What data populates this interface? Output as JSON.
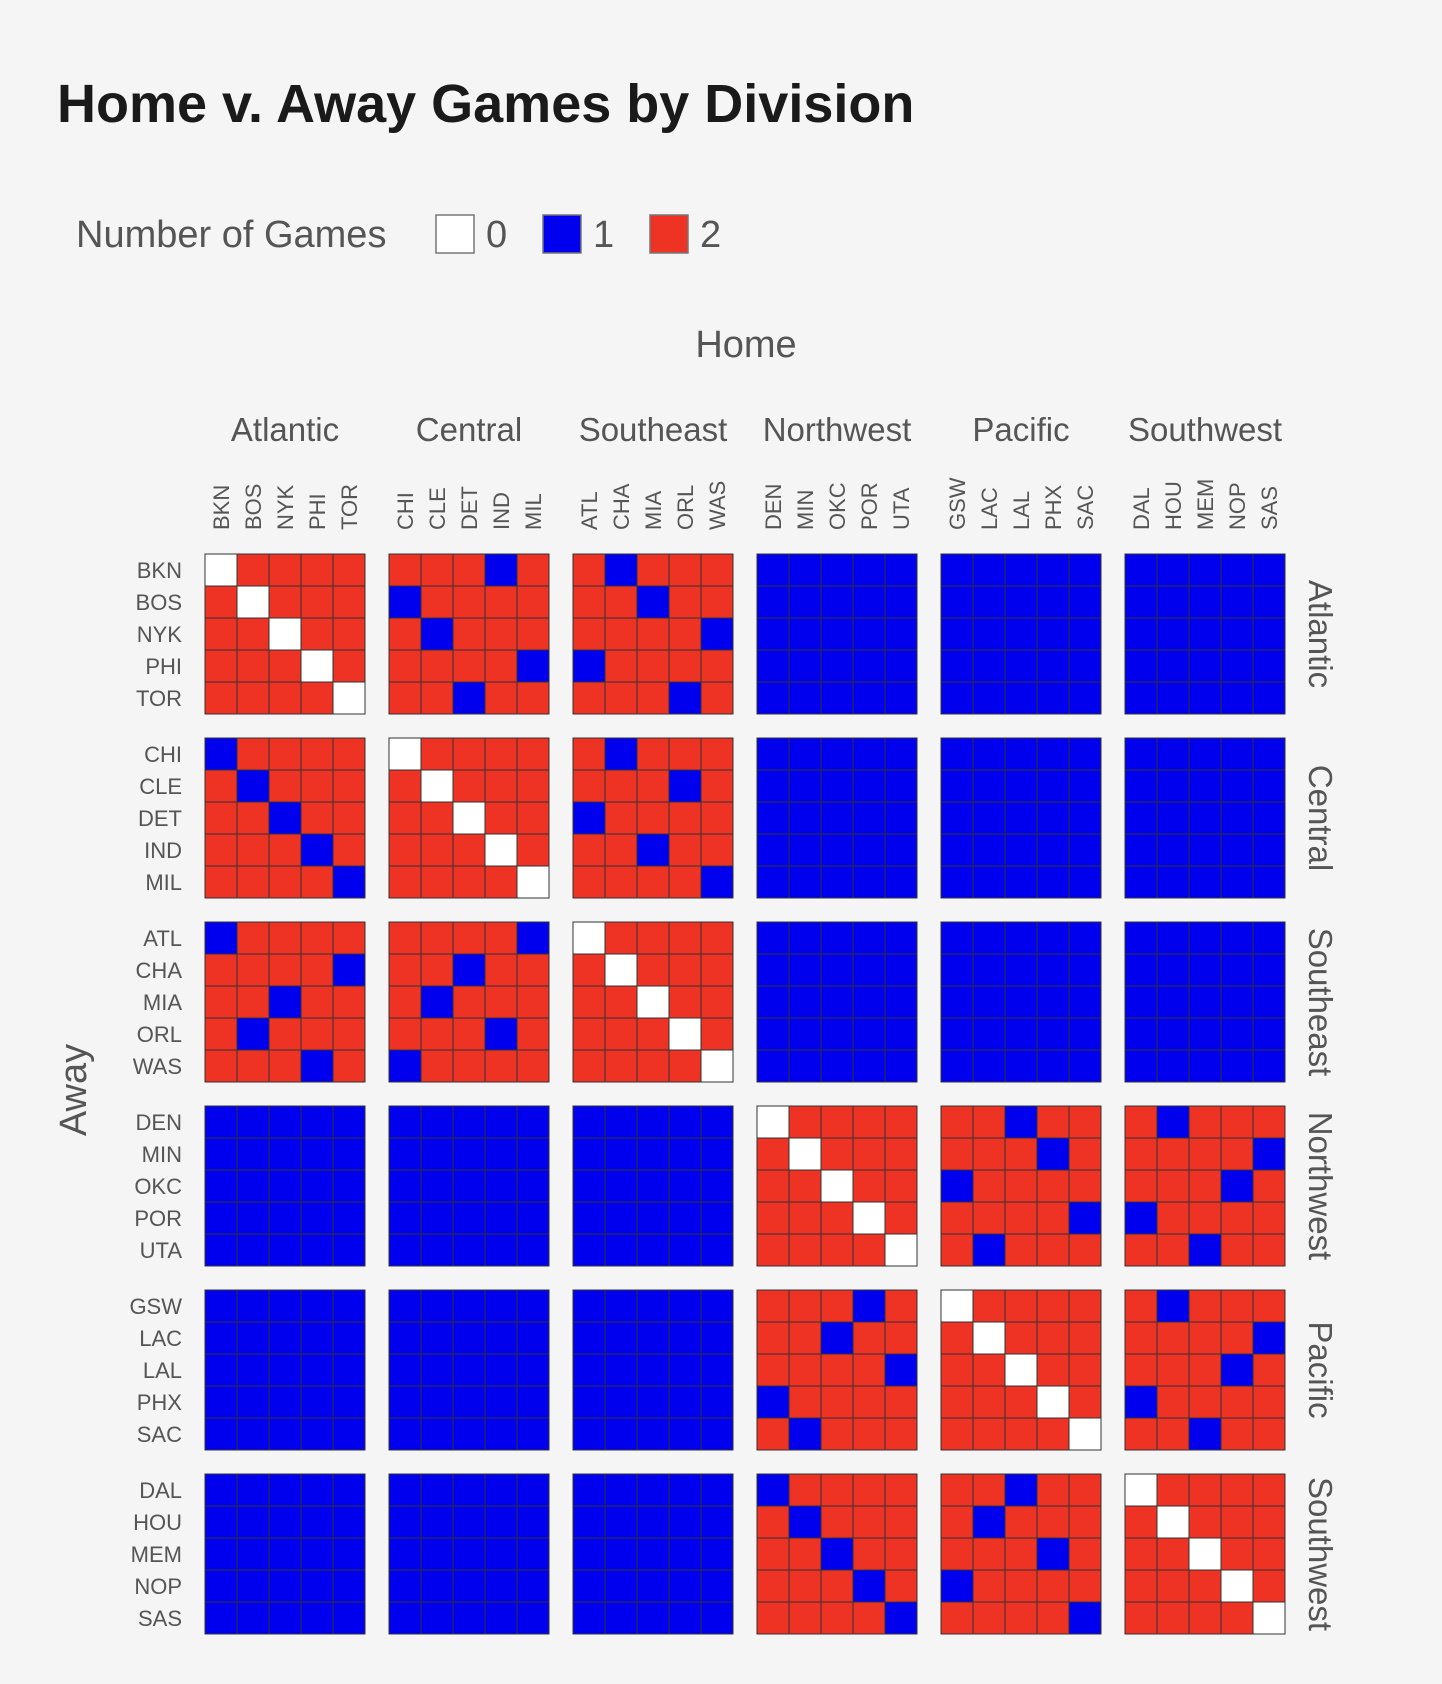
{
  "chart_data": {
    "type": "heatmap",
    "title": "Home v. Away Games by Division",
    "xlabel": "Home",
    "ylabel": "Away",
    "legend": {
      "title": "Number of Games",
      "placement": "top-left",
      "items": [
        {
          "value": 0,
          "label": "0",
          "color": "#ffffff"
        },
        {
          "value": 1,
          "label": "1",
          "color": "#0000ee"
        },
        {
          "value": 2,
          "label": "2",
          "color": "#ee3224"
        }
      ]
    },
    "colors": {
      "0": "#ffffff",
      "1": "#0000ee",
      "2": "#ee3224"
    },
    "divisions": [
      {
        "name": "Atlantic",
        "teams": [
          "BKN",
          "BOS",
          "NYK",
          "PHI",
          "TOR"
        ]
      },
      {
        "name": "Central",
        "teams": [
          "CHI",
          "CLE",
          "DET",
          "IND",
          "MIL"
        ]
      },
      {
        "name": "Southeast",
        "teams": [
          "ATL",
          "CHA",
          "MIA",
          "ORL",
          "WAS"
        ]
      },
      {
        "name": "Northwest",
        "teams": [
          "DEN",
          "MIN",
          "OKC",
          "POR",
          "UTA"
        ]
      },
      {
        "name": "Pacific",
        "teams": [
          "GSW",
          "LAC",
          "LAL",
          "PHX",
          "SAC"
        ]
      },
      {
        "name": "Southwest",
        "teams": [
          "DAL",
          "HOU",
          "MEM",
          "NOP",
          "SAS"
        ]
      }
    ],
    "matrix": [
      [
        0,
        2,
        2,
        2,
        2,
        2,
        2,
        2,
        1,
        2,
        2,
        1,
        2,
        2,
        2,
        1,
        1,
        1,
        1,
        1,
        1,
        1,
        1,
        1,
        1,
        1,
        1,
        1,
        1,
        1
      ],
      [
        2,
        0,
        2,
        2,
        2,
        1,
        2,
        2,
        2,
        2,
        2,
        2,
        1,
        2,
        2,
        1,
        1,
        1,
        1,
        1,
        1,
        1,
        1,
        1,
        1,
        1,
        1,
        1,
        1,
        1
      ],
      [
        2,
        2,
        0,
        2,
        2,
        2,
        1,
        2,
        2,
        2,
        2,
        2,
        2,
        2,
        1,
        1,
        1,
        1,
        1,
        1,
        1,
        1,
        1,
        1,
        1,
        1,
        1,
        1,
        1,
        1
      ],
      [
        2,
        2,
        2,
        0,
        2,
        2,
        2,
        2,
        2,
        1,
        1,
        2,
        2,
        2,
        2,
        1,
        1,
        1,
        1,
        1,
        1,
        1,
        1,
        1,
        1,
        1,
        1,
        1,
        1,
        1
      ],
      [
        2,
        2,
        2,
        2,
        0,
        2,
        2,
        1,
        2,
        2,
        2,
        2,
        2,
        1,
        2,
        1,
        1,
        1,
        1,
        1,
        1,
        1,
        1,
        1,
        1,
        1,
        1,
        1,
        1,
        1
      ],
      [
        1,
        2,
        2,
        2,
        2,
        0,
        2,
        2,
        2,
        2,
        2,
        1,
        2,
        2,
        2,
        1,
        1,
        1,
        1,
        1,
        1,
        1,
        1,
        1,
        1,
        1,
        1,
        1,
        1,
        1
      ],
      [
        2,
        1,
        2,
        2,
        2,
        2,
        0,
        2,
        2,
        2,
        2,
        2,
        2,
        1,
        2,
        1,
        1,
        1,
        1,
        1,
        1,
        1,
        1,
        1,
        1,
        1,
        1,
        1,
        1,
        1
      ],
      [
        2,
        2,
        1,
        2,
        2,
        2,
        2,
        0,
        2,
        2,
        1,
        2,
        2,
        2,
        2,
        1,
        1,
        1,
        1,
        1,
        1,
        1,
        1,
        1,
        1,
        1,
        1,
        1,
        1,
        1
      ],
      [
        2,
        2,
        2,
        1,
        2,
        2,
        2,
        2,
        0,
        2,
        2,
        2,
        1,
        2,
        2,
        1,
        1,
        1,
        1,
        1,
        1,
        1,
        1,
        1,
        1,
        1,
        1,
        1,
        1,
        1
      ],
      [
        2,
        2,
        2,
        2,
        1,
        2,
        2,
        2,
        2,
        0,
        2,
        2,
        2,
        2,
        1,
        1,
        1,
        1,
        1,
        1,
        1,
        1,
        1,
        1,
        1,
        1,
        1,
        1,
        1,
        1
      ],
      [
        1,
        2,
        2,
        2,
        2,
        2,
        2,
        2,
        2,
        1,
        0,
        2,
        2,
        2,
        2,
        1,
        1,
        1,
        1,
        1,
        1,
        1,
        1,
        1,
        1,
        1,
        1,
        1,
        1,
        1
      ],
      [
        2,
        2,
        2,
        2,
        1,
        2,
        2,
        1,
        2,
        2,
        2,
        0,
        2,
        2,
        2,
        1,
        1,
        1,
        1,
        1,
        1,
        1,
        1,
        1,
        1,
        1,
        1,
        1,
        1,
        1
      ],
      [
        2,
        2,
        1,
        2,
        2,
        2,
        1,
        2,
        2,
        2,
        2,
        2,
        0,
        2,
        2,
        1,
        1,
        1,
        1,
        1,
        1,
        1,
        1,
        1,
        1,
        1,
        1,
        1,
        1,
        1
      ],
      [
        2,
        1,
        2,
        2,
        2,
        2,
        2,
        2,
        1,
        2,
        2,
        2,
        2,
        0,
        2,
        1,
        1,
        1,
        1,
        1,
        1,
        1,
        1,
        1,
        1,
        1,
        1,
        1,
        1,
        1
      ],
      [
        2,
        2,
        2,
        1,
        2,
        1,
        2,
        2,
        2,
        2,
        2,
        2,
        2,
        2,
        0,
        1,
        1,
        1,
        1,
        1,
        1,
        1,
        1,
        1,
        1,
        1,
        1,
        1,
        1,
        1
      ],
      [
        1,
        1,
        1,
        1,
        1,
        1,
        1,
        1,
        1,
        1,
        1,
        1,
        1,
        1,
        1,
        0,
        2,
        2,
        2,
        2,
        2,
        2,
        1,
        2,
        2,
        2,
        1,
        2,
        2,
        2
      ],
      [
        1,
        1,
        1,
        1,
        1,
        1,
        1,
        1,
        1,
        1,
        1,
        1,
        1,
        1,
        1,
        2,
        0,
        2,
        2,
        2,
        2,
        2,
        2,
        1,
        2,
        2,
        2,
        2,
        2,
        1
      ],
      [
        1,
        1,
        1,
        1,
        1,
        1,
        1,
        1,
        1,
        1,
        1,
        1,
        1,
        1,
        1,
        2,
        2,
        0,
        2,
        2,
        1,
        2,
        2,
        2,
        2,
        2,
        2,
        2,
        1,
        2
      ],
      [
        1,
        1,
        1,
        1,
        1,
        1,
        1,
        1,
        1,
        1,
        1,
        1,
        1,
        1,
        1,
        2,
        2,
        2,
        0,
        2,
        2,
        2,
        2,
        2,
        1,
        1,
        2,
        2,
        2,
        2
      ],
      [
        1,
        1,
        1,
        1,
        1,
        1,
        1,
        1,
        1,
        1,
        1,
        1,
        1,
        1,
        1,
        2,
        2,
        2,
        2,
        0,
        2,
        1,
        2,
        2,
        2,
        2,
        2,
        1,
        2,
        2
      ],
      [
        1,
        1,
        1,
        1,
        1,
        1,
        1,
        1,
        1,
        1,
        1,
        1,
        1,
        1,
        1,
        2,
        2,
        2,
        1,
        2,
        0,
        2,
        2,
        2,
        2,
        2,
        1,
        2,
        2,
        2
      ],
      [
        1,
        1,
        1,
        1,
        1,
        1,
        1,
        1,
        1,
        1,
        1,
        1,
        1,
        1,
        1,
        2,
        2,
        1,
        2,
        2,
        2,
        0,
        2,
        2,
        2,
        2,
        2,
        2,
        2,
        1
      ],
      [
        1,
        1,
        1,
        1,
        1,
        1,
        1,
        1,
        1,
        1,
        1,
        1,
        1,
        1,
        1,
        2,
        2,
        2,
        2,
        1,
        2,
        2,
        0,
        2,
        2,
        2,
        2,
        2,
        1,
        2
      ],
      [
        1,
        1,
        1,
        1,
        1,
        1,
        1,
        1,
        1,
        1,
        1,
        1,
        1,
        1,
        1,
        1,
        2,
        2,
        2,
        2,
        2,
        2,
        2,
        0,
        2,
        1,
        2,
        2,
        2,
        2
      ],
      [
        1,
        1,
        1,
        1,
        1,
        1,
        1,
        1,
        1,
        1,
        1,
        1,
        1,
        1,
        1,
        2,
        1,
        2,
        2,
        2,
        2,
        2,
        2,
        2,
        0,
        2,
        2,
        1,
        2,
        2
      ],
      [
        1,
        1,
        1,
        1,
        1,
        1,
        1,
        1,
        1,
        1,
        1,
        1,
        1,
        1,
        1,
        1,
        2,
        2,
        2,
        2,
        2,
        2,
        1,
        2,
        2,
        0,
        2,
        2,
        2,
        2
      ],
      [
        1,
        1,
        1,
        1,
        1,
        1,
        1,
        1,
        1,
        1,
        1,
        1,
        1,
        1,
        1,
        2,
        1,
        2,
        2,
        2,
        2,
        1,
        2,
        2,
        2,
        2,
        0,
        2,
        2,
        2
      ],
      [
        1,
        1,
        1,
        1,
        1,
        1,
        1,
        1,
        1,
        1,
        1,
        1,
        1,
        1,
        1,
        2,
        2,
        1,
        2,
        2,
        2,
        2,
        2,
        1,
        2,
        2,
        2,
        0,
        2,
        2
      ],
      [
        1,
        1,
        1,
        1,
        1,
        1,
        1,
        1,
        1,
        1,
        1,
        1,
        1,
        1,
        1,
        2,
        2,
        2,
        1,
        2,
        1,
        2,
        2,
        2,
        2,
        2,
        2,
        2,
        0,
        2
      ],
      [
        1,
        1,
        1,
        1,
        1,
        1,
        1,
        1,
        1,
        1,
        1,
        1,
        1,
        1,
        1,
        2,
        2,
        2,
        2,
        1,
        2,
        2,
        2,
        2,
        1,
        2,
        2,
        2,
        2,
        0
      ]
    ]
  }
}
